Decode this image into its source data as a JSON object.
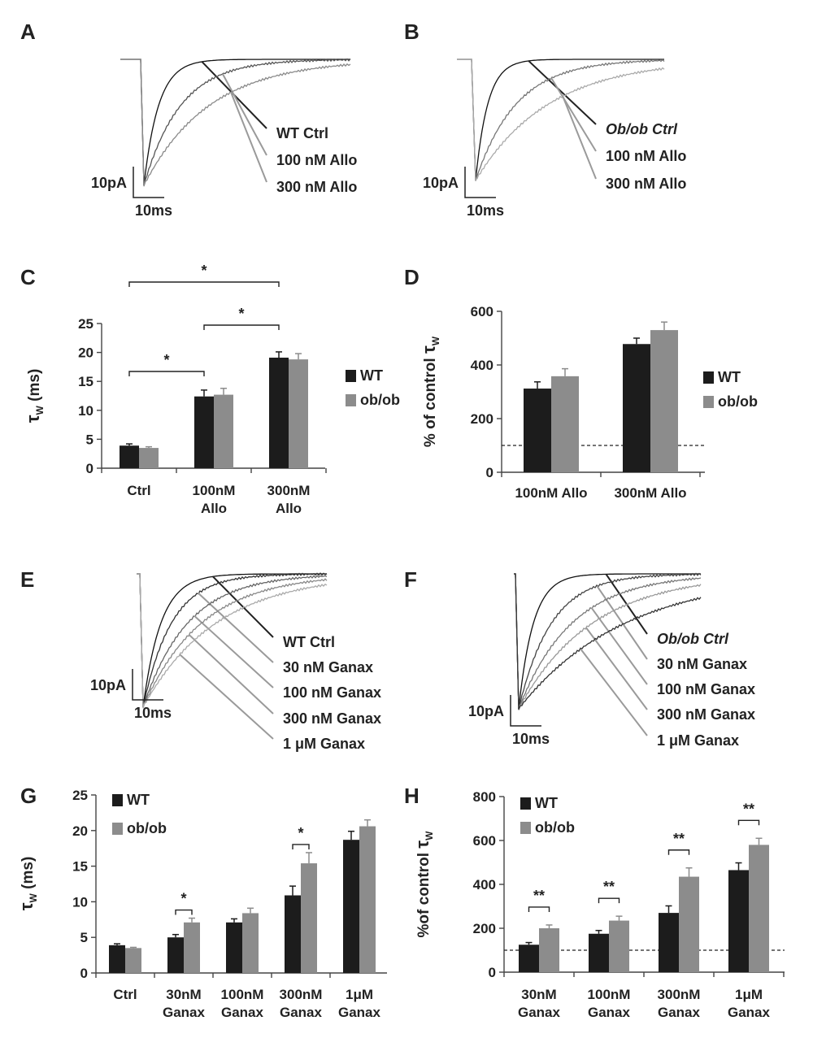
{
  "colors": {
    "wt": "#1c1c1c",
    "obob": "#8c8c8c",
    "axis": "#444444",
    "dashed": "#222222"
  },
  "traces": [
    {
      "panel": "A",
      "labels": [
        "WT Ctrl",
        "100 nM Allo",
        "300 nM Allo"
      ],
      "scale": {
        "current": "10pA",
        "time": "10ms"
      }
    },
    {
      "panel": "B",
      "labels": [
        "Ob/ob Ctrl",
        "100 nM Allo",
        "300 nM Allo"
      ],
      "scale": {
        "current": "10pA",
        "time": "10ms"
      }
    },
    {
      "panel": "E",
      "labels": [
        "WT Ctrl",
        "30 nM Ganax",
        "100 nM Ganax",
        "300 nM Ganax",
        "1 μM Ganax"
      ],
      "scale": {
        "current": "10pA",
        "time": "10ms"
      }
    },
    {
      "panel": "F",
      "labels": [
        "Ob/ob Ctrl",
        "30 nM Ganax",
        "100 nM Ganax",
        "300 nM Ganax",
        "1 μM Ganax"
      ],
      "scale": {
        "current": "10pA",
        "time": "10ms"
      }
    }
  ],
  "chart_data": [
    {
      "panel": "C",
      "type": "bar",
      "categories": [
        [
          "Ctrl"
        ],
        [
          "100nM",
          "Allo"
        ],
        [
          "300nM",
          "Allo"
        ]
      ],
      "series": [
        {
          "name": "WT",
          "values": [
            3.9,
            12.4,
            19.1
          ],
          "errors": [
            0.3,
            1.1,
            1.0
          ]
        },
        {
          "name": "ob/ob",
          "values": [
            3.5,
            12.7,
            18.8
          ],
          "errors": [
            0.2,
            1.1,
            1.0
          ]
        }
      ],
      "ylabel": "τW (ms)",
      "ylim": [
        0,
        25
      ],
      "yticks": [
        0,
        5,
        10,
        15,
        20,
        25
      ],
      "legend": "right",
      "significance": [
        {
          "from": 0,
          "to": 1,
          "label": "*"
        },
        {
          "from": 1,
          "to": 2,
          "label": "*"
        },
        {
          "from": 0,
          "to": 2,
          "label": "*"
        }
      ]
    },
    {
      "panel": "D",
      "type": "bar",
      "categories": [
        [
          "100nM Allo"
        ],
        [
          "300nM Allo"
        ]
      ],
      "series": [
        {
          "name": "WT",
          "values": [
            312,
            478
          ],
          "errors": [
            25,
            22
          ]
        },
        {
          "name": "ob/ob",
          "values": [
            358,
            530
          ],
          "errors": [
            28,
            30
          ]
        }
      ],
      "ylabel": "% of control τW",
      "ylim": [
        0,
        600
      ],
      "yticks": [
        0,
        200,
        400,
        600
      ],
      "reference_line": 100,
      "legend": "right"
    },
    {
      "panel": "G",
      "type": "bar",
      "categories": [
        [
          "Ctrl"
        ],
        [
          "30nM",
          "Ganax"
        ],
        [
          "100nM",
          "Ganax"
        ],
        [
          "300nM",
          "Ganax"
        ],
        [
          "1μM",
          "Ganax"
        ]
      ],
      "series": [
        {
          "name": "WT",
          "values": [
            3.9,
            5.0,
            7.1,
            10.9,
            18.7
          ],
          "errors": [
            0.2,
            0.4,
            0.5,
            1.3,
            1.2
          ]
        },
        {
          "name": "ob/ob",
          "values": [
            3.5,
            7.1,
            8.4,
            15.4,
            20.6
          ],
          "errors": [
            0.1,
            0.6,
            0.7,
            1.5,
            0.9
          ]
        }
      ],
      "ylabel": "τW (ms)",
      "ylim": [
        0,
        25
      ],
      "yticks": [
        0,
        5,
        10,
        15,
        20,
        25
      ],
      "legend": "top-left",
      "significance": [
        {
          "category": 1,
          "label": "*"
        },
        {
          "category": 3,
          "label": "*"
        }
      ]
    },
    {
      "panel": "H",
      "type": "bar",
      "categories": [
        [
          "30nM",
          "Ganax"
        ],
        [
          "100nM",
          "Ganax"
        ],
        [
          "300nM",
          "Ganax"
        ],
        [
          "1μM",
          "Ganax"
        ]
      ],
      "series": [
        {
          "name": "WT",
          "values": [
            125,
            175,
            270,
            465
          ],
          "errors": [
            10,
            15,
            32,
            33
          ]
        },
        {
          "name": "ob/ob",
          "values": [
            200,
            235,
            435,
            580
          ],
          "errors": [
            15,
            20,
            40,
            30
          ]
        }
      ],
      "ylabel": "%of control τW",
      "ylim": [
        0,
        800
      ],
      "yticks": [
        0,
        200,
        400,
        600,
        800
      ],
      "reference_line": 100,
      "legend": "top-left",
      "significance": [
        {
          "category": 0,
          "label": "**"
        },
        {
          "category": 1,
          "label": "**"
        },
        {
          "category": 2,
          "label": "**"
        },
        {
          "category": 3,
          "label": "**"
        }
      ]
    }
  ]
}
